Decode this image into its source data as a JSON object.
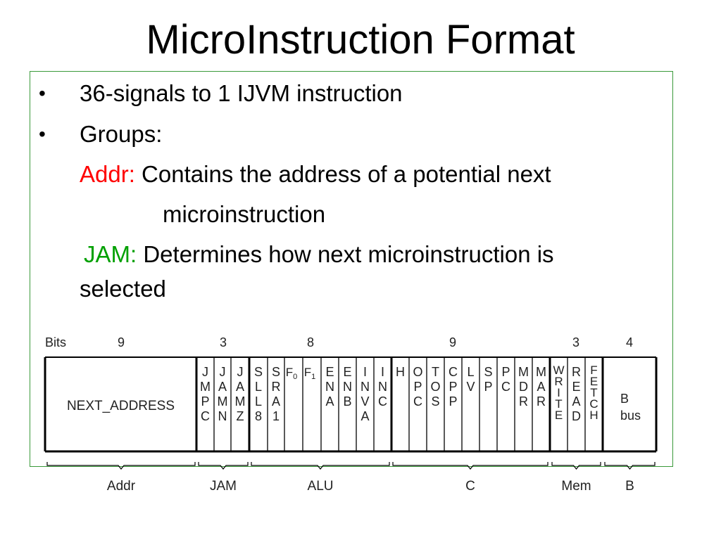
{
  "slide": {
    "title": "MicroInstruction Format",
    "bullets": [
      {
        "symbol": "•",
        "text": "36-signals to 1 IJVM instruction"
      },
      {
        "symbol": "•",
        "text": "Groups:"
      }
    ],
    "addr_label": "Addr:",
    "addr_text_1": "Contains the address of a potential next",
    "addr_text_2": "microinstruction",
    "jam_label": "JAM:",
    "jam_text_1": "Determines how next microinstruction is",
    "jam_text_2": "selected",
    "colors": {
      "addr_label": "#ff0000",
      "jam_label": "#00a000",
      "box_border": "#3a9a3a"
    }
  },
  "diagram": {
    "bits_label": "Bits",
    "group_bits": [
      "9",
      "3",
      "8",
      "9",
      "3",
      "4"
    ],
    "fields": [
      {
        "name": "NEXT_ADDRESS",
        "lines": [
          "NEXT_ADDRESS"
        ]
      },
      {
        "name": "JMPC",
        "lines": [
          "J",
          "M",
          "P",
          "C"
        ]
      },
      {
        "name": "JAMN",
        "lines": [
          "J",
          "A",
          "M",
          "N"
        ]
      },
      {
        "name": "JAMZ",
        "lines": [
          "J",
          "A",
          "M",
          "Z"
        ]
      },
      {
        "name": "SLL8",
        "lines": [
          "S",
          "L",
          "L",
          "8"
        ]
      },
      {
        "name": "SRA1",
        "lines": [
          "S",
          "R",
          "A",
          "1"
        ]
      },
      {
        "name": "F0",
        "lines": [
          "F0"
        ]
      },
      {
        "name": "F1",
        "lines": [
          "F1"
        ]
      },
      {
        "name": "ENA",
        "lines": [
          "E",
          "N",
          "A"
        ]
      },
      {
        "name": "ENB",
        "lines": [
          "E",
          "N",
          "B"
        ]
      },
      {
        "name": "INVA",
        "lines": [
          "I",
          "N",
          "V",
          "A"
        ]
      },
      {
        "name": "INC",
        "lines": [
          "I",
          "N",
          "C"
        ]
      },
      {
        "name": "H",
        "lines": [
          "H"
        ]
      },
      {
        "name": "OPC",
        "lines": [
          "O",
          "P",
          "C"
        ]
      },
      {
        "name": "TOS",
        "lines": [
          "T",
          "O",
          "S"
        ]
      },
      {
        "name": "CPP",
        "lines": [
          "C",
          "P",
          "P"
        ]
      },
      {
        "name": "LV",
        "lines": [
          "L",
          "V"
        ]
      },
      {
        "name": "SP",
        "lines": [
          "S",
          "P"
        ]
      },
      {
        "name": "PC",
        "lines": [
          "P",
          "C"
        ]
      },
      {
        "name": "MDR",
        "lines": [
          "M",
          "D",
          "R"
        ]
      },
      {
        "name": "MAR",
        "lines": [
          "M",
          "A",
          "R"
        ]
      },
      {
        "name": "WRITE",
        "lines": [
          "W",
          "R",
          "I",
          "T",
          "E"
        ]
      },
      {
        "name": "READ",
        "lines": [
          "R",
          "E",
          "A",
          "D"
        ]
      },
      {
        "name": "FETCH",
        "lines": [
          "F",
          "E",
          "T",
          "C",
          "H"
        ]
      },
      {
        "name": "B bus",
        "lines": [
          "B",
          "bus"
        ]
      }
    ],
    "groups": [
      "Addr",
      "JAM",
      "ALU",
      "C",
      "Mem",
      "B"
    ]
  }
}
